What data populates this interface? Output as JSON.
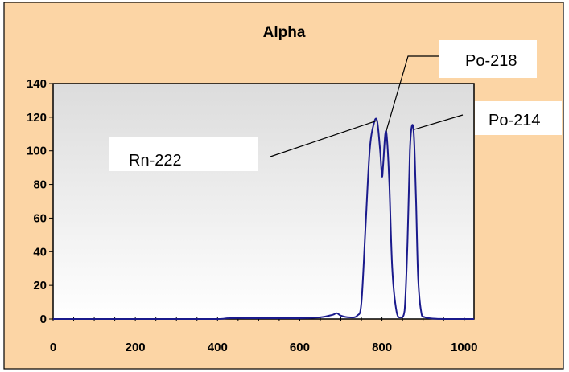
{
  "colors": {
    "chart_area_bg": "#FCD5A5",
    "plot_top": "#DCDCDC",
    "plot_bottom": "#FFFFFF",
    "series_line": "#1A1A8C",
    "border": "#000000",
    "label_box": "#FFFFFF"
  },
  "chart_data": {
    "type": "line",
    "title": "Alpha",
    "xlabel": "",
    "ylabel": "",
    "xlim": [
      0,
      1024
    ],
    "ylim": [
      0,
      140
    ],
    "x_ticks": [
      "0",
      "200",
      "400",
      "600",
      "800",
      "1000"
    ],
    "y_ticks": [
      "0",
      "20",
      "40",
      "60",
      "80",
      "100",
      "120",
      "140"
    ],
    "grid": false,
    "legend": "none",
    "series": [
      {
        "x": [
          0,
          100,
          200,
          300,
          400,
          430,
          500,
          600,
          650,
          680,
          690,
          700,
          720,
          740,
          750,
          760,
          770,
          780,
          788,
          795,
          800,
          803,
          808,
          812,
          818,
          825,
          835,
          845,
          855,
          862,
          868,
          873,
          878,
          883,
          888,
          895,
          905,
          950,
          1024
        ],
        "y": [
          0,
          0,
          0,
          0,
          0,
          0.5,
          0.5,
          0.5,
          1,
          2.5,
          3.5,
          2,
          1,
          2,
          10,
          55,
          100,
          116,
          118,
          102,
          85,
          92,
          110,
          108,
          80,
          30,
          5,
          1,
          5,
          45,
          100,
          115,
          108,
          70,
          25,
          5,
          1,
          0,
          0
        ]
      }
    ],
    "annotations": [
      {
        "text": "Rn-222",
        "x": 788,
        "y": 118
      },
      {
        "text": "Po-218",
        "x": 808,
        "y": 110
      },
      {
        "text": "Po-214",
        "x": 873,
        "y": 115
      }
    ]
  }
}
